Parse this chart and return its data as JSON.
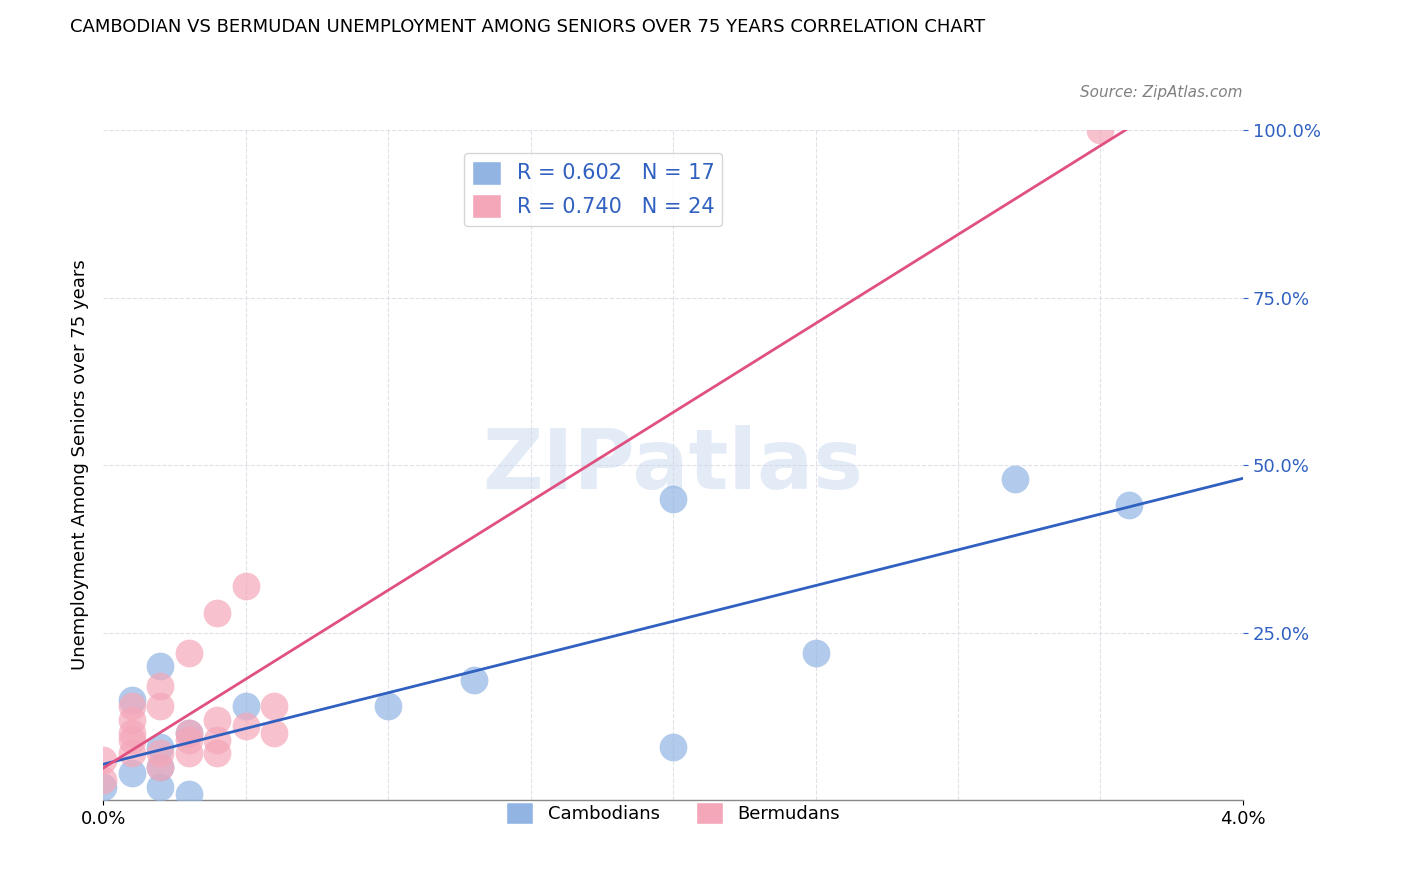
{
  "title": "CAMBODIAN VS BERMUDAN UNEMPLOYMENT AMONG SENIORS OVER 75 YEARS CORRELATION CHART",
  "source": "Source: ZipAtlas.com",
  "xlabel": "",
  "ylabel": "Unemployment Among Seniors over 75 years",
  "xlim": [
    0.0,
    0.04
  ],
  "ylim": [
    0.0,
    1.0
  ],
  "xtick_labels": [
    "0.0%",
    "4.0%"
  ],
  "xtick_positions": [
    0.0,
    0.04
  ],
  "ytick_labels_right": [
    "100.0%",
    "75.0%",
    "50.0%",
    "25.0%"
  ],
  "ytick_positions_right": [
    1.0,
    0.75,
    0.5,
    0.25
  ],
  "cambodian_R": 0.602,
  "cambodian_N": 17,
  "bermudan_R": 0.74,
  "bermudan_N": 24,
  "cambodian_color": "#92b4e3",
  "bermudan_color": "#f4a7b9",
  "cambodian_line_color": "#3060c0",
  "bermudan_line_color": "#e05080",
  "cambodian_x": [
    0.0,
    0.001,
    0.001,
    0.002,
    0.002,
    0.002,
    0.002,
    0.003,
    0.003,
    0.005,
    0.01,
    0.013,
    0.02,
    0.02,
    0.025,
    0.032,
    0.036
  ],
  "cambodian_y": [
    0.02,
    0.04,
    0.15,
    0.02,
    0.05,
    0.08,
    0.2,
    0.01,
    0.1,
    0.14,
    0.14,
    0.18,
    0.08,
    0.45,
    0.22,
    0.48,
    0.44
  ],
  "bermudan_x": [
    0.0,
    0.0,
    0.001,
    0.001,
    0.001,
    0.001,
    0.001,
    0.002,
    0.002,
    0.002,
    0.002,
    0.003,
    0.003,
    0.003,
    0.003,
    0.004,
    0.004,
    0.004,
    0.004,
    0.005,
    0.005,
    0.006,
    0.006,
    0.035
  ],
  "bermudan_y": [
    0.03,
    0.06,
    0.07,
    0.09,
    0.1,
    0.12,
    0.14,
    0.05,
    0.07,
    0.14,
    0.17,
    0.07,
    0.09,
    0.1,
    0.22,
    0.07,
    0.09,
    0.12,
    0.28,
    0.11,
    0.32,
    0.1,
    0.14,
    1.0
  ],
  "watermark": "ZIPatlas",
  "background_color": "#ffffff",
  "grid_color": "#e0e0e8"
}
